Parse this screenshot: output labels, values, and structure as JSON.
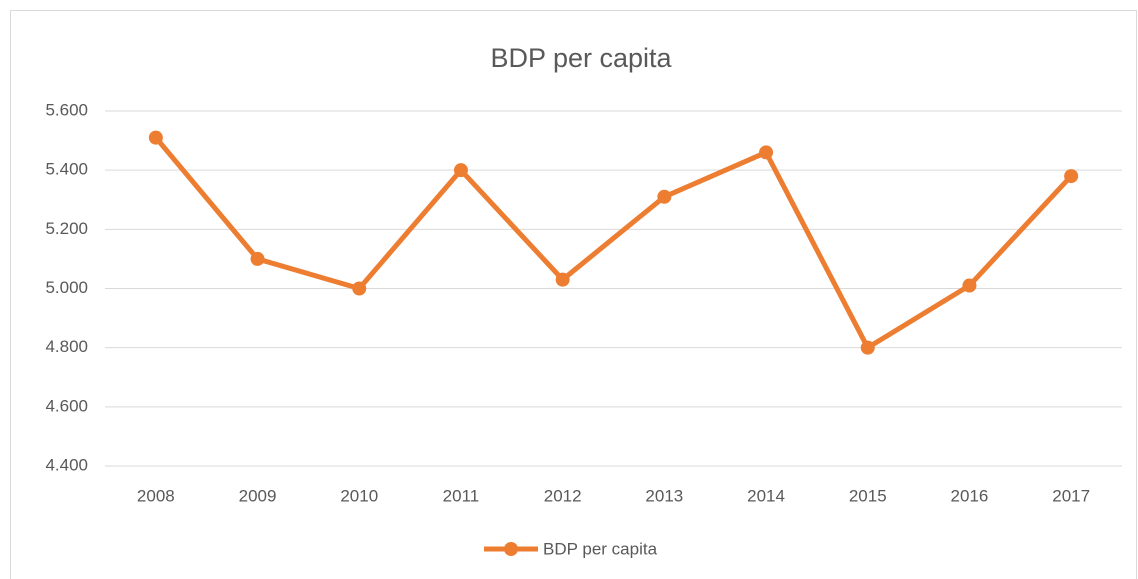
{
  "chart_data": {
    "type": "line",
    "title": "BDP per capita",
    "categories": [
      "2008",
      "2009",
      "2010",
      "2011",
      "2012",
      "2013",
      "2014",
      "2015",
      "2016",
      "2017"
    ],
    "series": [
      {
        "name": "BDP per capita",
        "color": "#ed7d31",
        "values": [
          5510,
          5100,
          5000,
          5400,
          5030,
          5310,
          5460,
          4800,
          5010,
          5380
        ]
      }
    ],
    "ylim": [
      4400,
      5600
    ],
    "yticks": [
      {
        "value": 4400,
        "label": "4.400"
      },
      {
        "value": 4600,
        "label": "4.600"
      },
      {
        "value": 4800,
        "label": "4.800"
      },
      {
        "value": 5000,
        "label": "5.000"
      },
      {
        "value": 5200,
        "label": "5.200"
      },
      {
        "value": 5400,
        "label": "5.400"
      },
      {
        "value": 5600,
        "label": "5.600"
      }
    ],
    "grid": true,
    "legend": "bottom"
  }
}
